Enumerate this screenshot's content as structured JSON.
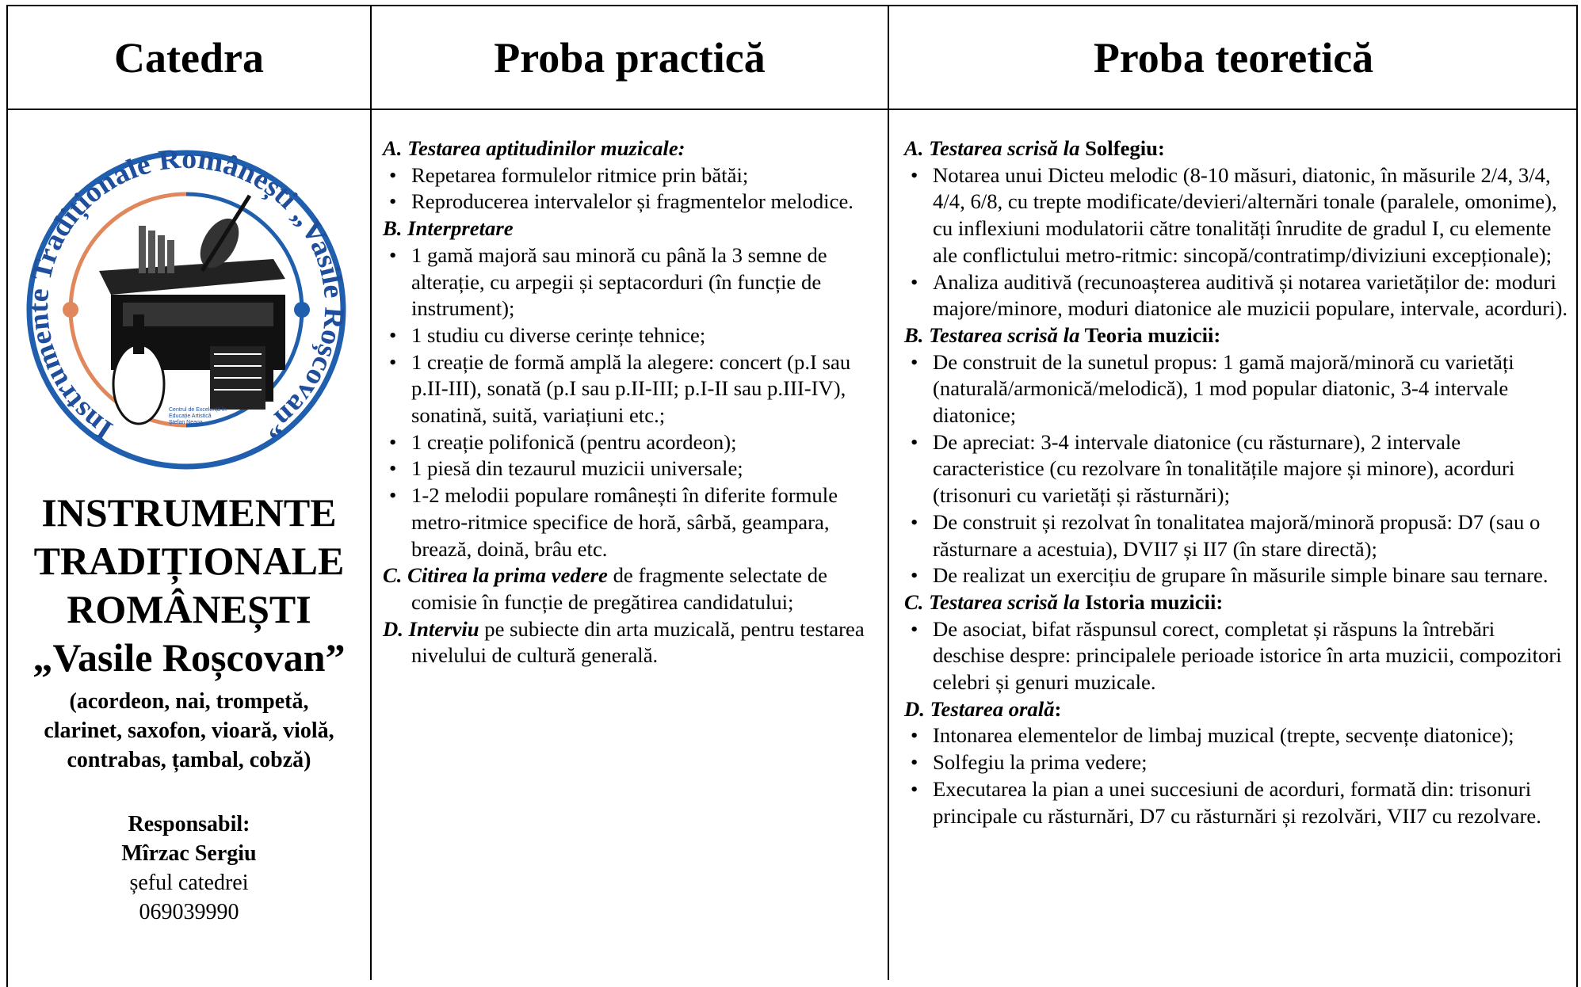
{
  "table": {
    "headers": [
      "Catedra",
      "Proba practică",
      "Proba teoretică"
    ],
    "catedra": {
      "logo": {
        "ring_text": "Instrumente Tradiționale Românești „Vasile Roșcovan”",
        "caption": [
          "Centrul de Excelență în",
          "Educație Artistică",
          "Ștefan Neaga"
        ]
      },
      "title_lines": [
        "INSTRUMENTE",
        "TRADIȚIONALE",
        "ROMÂNEȘTI",
        "„Vasile Roșcovan”"
      ],
      "instrument_lines": [
        "(acordeon, nai, trompetă,",
        "clarinet, saxofon, vioară, violă,",
        "contrabas, țambal, cobză)"
      ],
      "responsible_label": "Responsabil:",
      "name": "Mîrzac Sergiu",
      "role": "șeful catedrei",
      "phone": "069039990"
    },
    "practica": [
      {
        "heading": "A. Testarea aptitudinilor muzicale:",
        "items": [
          "Repetarea formulelor ritmice prin bătăi;",
          "Reproducerea intervalelor și fragmentelor melodice."
        ]
      },
      {
        "heading": "B. Interpretare",
        "items": [
          "1 gamă majoră sau minoră cu până la 3 semne de alterație, cu arpegii și septacorduri (în funcție de instrument);",
          "1 studiu cu diverse cerințe tehnice;",
          "1 creație de formă amplă la alegere: concert (p.I sau p.II-III), sonată (p.I sau p.II-III; p.I-II sau p.III-IV), sonatină, suită, variațiuni etc.;",
          "1 creație polifonică (pentru acordeon);",
          "1 piesă din tezaurul muzicii universale;",
          "1-2 melodii populare românești în diferite formule metro-ritmice specifice de horă, sârbă, geampara, brează, doină, brâu etc."
        ]
      },
      {
        "heading": "C. Citirea la prima vedere",
        "note": " de fragmente selectate de comisie în funcție de pregătirea candidatului;"
      },
      {
        "heading": "D. Interviu",
        "note": " pe subiecte din arta muzicală, pentru testarea nivelului de cultură generală."
      }
    ],
    "teoretica": [
      {
        "heading": "A. Testarea scrisă la",
        "heading_bold": " Solfegiu:",
        "items": [
          "Notarea unui Dicteu melodic (8-10 măsuri, diatonic, în măsurile 2/4, 3/4, 4/4, 6/8, cu trepte modificate/devieri/alternări tonale (paralele, omonime), cu inflexiuni modulatorii către tonalități înrudite de gradul I, cu elemente ale conflictului metro-ritmic: sincopă/contratimp/diviziuni excepționale);",
          "Analiza auditivă (recunoașterea auditivă și notarea  varietăților de: moduri majore/minore, moduri diatonice ale muzicii populare, intervale, acorduri)."
        ]
      },
      {
        "heading": "B. Testarea scrisă la",
        "heading_bold": " Teoria muzicii:",
        "items": [
          "De construit de la sunetul propus: 1 gamă majoră/minoră cu varietăți (naturală/armonică/melodică), 1 mod popular diatonic, 3-4 intervale diatonice;",
          "De apreciat: 3-4 intervale diatonice (cu răsturnare), 2 intervale caracteristice (cu rezolvare în tonalitățile majore și minore), acorduri (trisonuri cu varietăți și răsturnări);",
          "De construit și rezolvat în tonalitatea majoră/minoră propusă:  D7 (sau o răsturnare a acestuia), DVII7 și II7 (în stare directă);",
          "De realizat un exercițiu de grupare în măsurile simple binare sau ternare."
        ]
      },
      {
        "heading": "C. Testarea scrisă la",
        "heading_bold": " Istoria muzicii:",
        "items": [
          "De asociat, bifat răspunsul corect, completat și răspuns la întrebări deschise despre: principalele perioade istorice în arta muzicii, compozitori celebri și genuri muzicale."
        ]
      },
      {
        "heading": "D. Testarea orală",
        "heading_bold": ":",
        "items": [
          "Intonarea elementelor de limbaj muzical (trepte, secvențe diatonice);",
          "Solfegiu la prima vedere;",
          "Executarea la pian a unei succesiuni de acorduri, formată din: trisonuri principale cu răsturnări, D7 cu răsturnări și rezolvări, VII7 cu rezolvare."
        ]
      }
    ]
  }
}
